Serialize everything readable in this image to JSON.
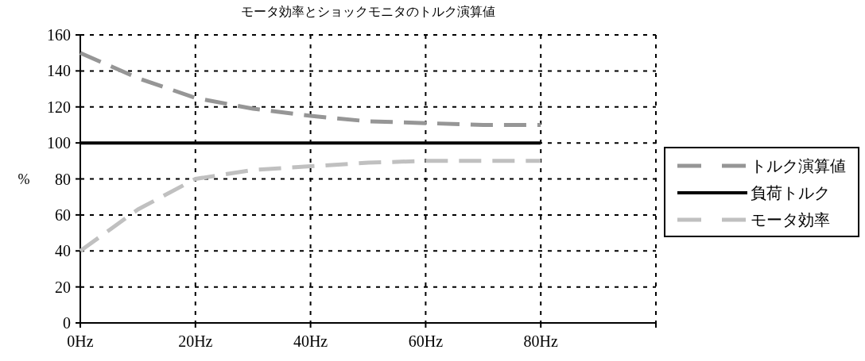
{
  "chart_data": {
    "type": "line",
    "title": "モータ効率とショックモニタのトルク演算値",
    "ylabel": "%",
    "x": [
      0,
      10,
      20,
      30,
      40,
      50,
      60,
      70,
      80
    ],
    "xlim": [
      0,
      100
    ],
    "xticks": [
      {
        "value": 0,
        "label": "0Hz"
      },
      {
        "value": 20,
        "label": "20Hz"
      },
      {
        "value": 40,
        "label": "40Hz"
      },
      {
        "value": 60,
        "label": "60Hz"
      },
      {
        "value": 80,
        "label": "80Hz"
      },
      {
        "value": 100,
        "label": null
      }
    ],
    "ylim": [
      0,
      160
    ],
    "yticks": [
      0,
      20,
      40,
      60,
      80,
      100,
      120,
      140,
      160
    ],
    "grid": true,
    "legend": "right",
    "series": [
      {
        "name": "トルク演算値",
        "color": "#969696",
        "line_style": "dashed",
        "values": [
          150,
          136,
          125,
          119,
          115,
          112,
          111,
          110,
          110
        ]
      },
      {
        "name": "負荷トルク",
        "color": "#000000",
        "line_style": "solid",
        "values": [
          100,
          100,
          100,
          100,
          100,
          100,
          100,
          100,
          100
        ]
      },
      {
        "name": "モータ効率",
        "color": "#c0c0c0",
        "line_style": "dashed",
        "values": [
          40,
          63,
          80,
          85,
          87,
          89,
          90,
          90,
          90
        ]
      }
    ]
  }
}
